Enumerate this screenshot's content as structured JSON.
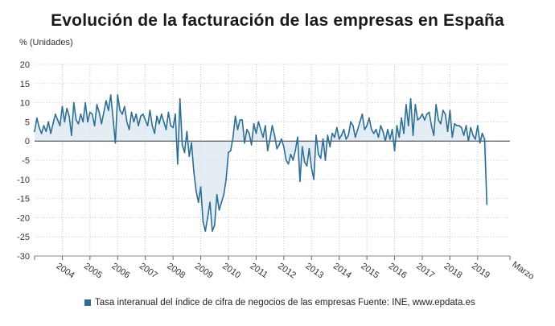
{
  "title": "Evolución de la facturación de las empresas en España",
  "y_unit": "% (Unidades)",
  "legend_label": "Tasa interanual del índice de cifra de negocios de las empresas",
  "source": "Fuente: INE, www.epdata.es",
  "colors": {
    "line": "#2d6f94",
    "area": "#d9e6ef",
    "grid": "#c9c9c9",
    "zero": "#333333"
  },
  "chart_data": {
    "type": "area",
    "title": "Evolución de la facturación de las empresas en España",
    "ylabel": "% (Unidades)",
    "ylim": [
      -30,
      20
    ],
    "yticks": [
      20,
      15,
      10,
      5,
      0,
      -5,
      -10,
      -15,
      -20,
      -25,
      -30
    ],
    "x_tick_labels": [
      "2004",
      "2005",
      "2006",
      "2007",
      "2008",
      "2009",
      "2010",
      "2011",
      "2012",
      "2013",
      "2014",
      "2015",
      "2016",
      "2017",
      "2018",
      "2019",
      "Marzo"
    ],
    "x_start": "2003-01",
    "x_end": "2020-03",
    "grid": true,
    "legend_position": "bottom",
    "series": [
      {
        "name": "Tasa interanual del índice de cifra de negocios de las empresas",
        "frequency": "monthly",
        "values": [
          2.5,
          6.0,
          3.5,
          2.0,
          4.0,
          2.5,
          5.0,
          2.0,
          4.5,
          7.0,
          5.5,
          4.0,
          9.0,
          5.0,
          8.5,
          6.5,
          1.5,
          10.0,
          5.5,
          4.5,
          7.0,
          5.0,
          10.0,
          5.0,
          7.5,
          7.0,
          4.0,
          9.5,
          7.5,
          4.5,
          7.5,
          10.5,
          8.0,
          12.0,
          6.0,
          -0.5,
          12.0,
          8.0,
          7.0,
          9.0,
          5.0,
          3.0,
          7.5,
          5.0,
          7.0,
          4.0,
          6.5,
          7.0,
          5.5,
          4.0,
          8.0,
          4.0,
          2.0,
          6.5,
          4.5,
          7.0,
          5.0,
          3.0,
          7.5,
          4.0,
          3.5,
          7.0,
          -6.0,
          11.0,
          -1.0,
          -3.0,
          2.5,
          -4.0,
          -0.5,
          -8.0,
          -13.0,
          -16.0,
          -12.0,
          -21.0,
          -23.5,
          -20.0,
          -16.0,
          -23.5,
          -22.0,
          -14.0,
          -18.0,
          -16.0,
          -14.0,
          -10.0,
          -3.0,
          -2.5,
          1.0,
          6.5,
          3.0,
          5.5,
          5.5,
          -0.5,
          3.0,
          2.0,
          -1.0,
          4.5,
          2.0,
          5.0,
          3.0,
          1.0,
          4.0,
          -2.5,
          0.5,
          4.0,
          1.5,
          -2.0,
          -1.0,
          0.5,
          -1.5,
          -5.0,
          -6.0,
          -3.5,
          -5.0,
          -2.5,
          1.0,
          -10.5,
          -1.5,
          -5.5,
          -6.5,
          -2.0,
          -7.0,
          -10.0,
          1.5,
          -3.5,
          -4.5,
          0.5,
          -5.0,
          1.5,
          -1.5,
          2.0,
          1.0,
          3.5,
          0.5,
          1.5,
          3.0,
          0.5,
          1.5,
          5.0,
          4.0,
          1.0,
          3.0,
          5.0,
          7.0,
          3.0,
          4.0,
          6.0,
          3.0,
          2.0,
          3.0,
          1.0,
          4.0,
          2.5,
          0.0,
          3.0,
          0.5,
          3.0,
          -2.5,
          4.0,
          1.0,
          6.0,
          2.0,
          9.5,
          4.0,
          11.0,
          1.5,
          9.5,
          5.5,
          6.0,
          7.0,
          5.5,
          7.0,
          7.5,
          4.0,
          1.5,
          9.5,
          5.5,
          4.5,
          8.0,
          7.0,
          2.5,
          8.0,
          1.0,
          4.5,
          4.0,
          4.0,
          3.5,
          1.5,
          4.0,
          0.0,
          3.5,
          1.5,
          0.5,
          4.0,
          -0.5,
          2.0,
          0.5,
          -16.5
        ]
      }
    ]
  }
}
